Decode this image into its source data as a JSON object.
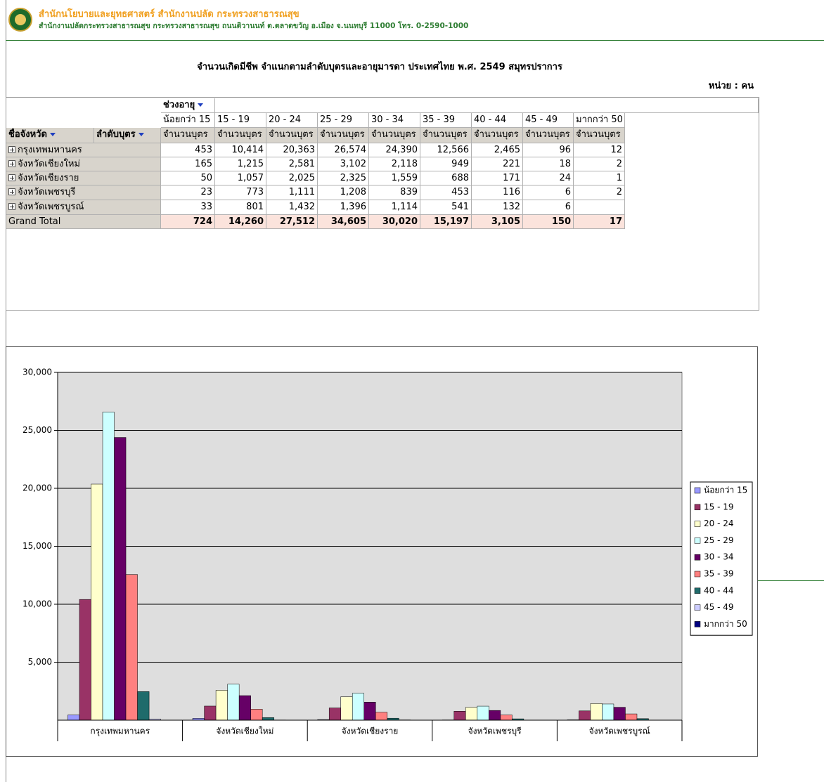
{
  "header": {
    "title": "สำนักนโยบายและยุทธศาสตร์ สำนักงานปลัด กระทรวงสาธารณสุข",
    "subtitle": "สำนักงานปลัดกระทรวงสาธารณสุข กระทรวงสาธารณสุข ถนนติวานนท์ ต.ตลาดขวัญ อ.เมือง จ.นนทบุรี 11000 โทร. 0-2590-1000"
  },
  "report_title": "จำนวนเกิดมีชีพ จำแนกตามลำดับบุตรและอายุมารดา ประเทศไทย พ.ศ. 2549  สมุทรปราการ",
  "unit": "หน่วย : คน",
  "table": {
    "column_field": "ช่วงอายุ",
    "row_fields": [
      "ชื่อจังหวัด",
      "ลำดับบุตร"
    ],
    "age_groups": [
      "น้อยกว่า 15",
      "15 - 19",
      "20 - 24",
      "25 - 29",
      "30 - 34",
      "35 - 39",
      "40 - 44",
      "45 - 49",
      "มากกว่า 50"
    ],
    "measure": "จำนวนบุตร",
    "rows": [
      {
        "name": "กรุงเทพมหานคร",
        "values": [
          "453",
          "10,414",
          "20,363",
          "26,574",
          "24,390",
          "12,566",
          "2,465",
          "96",
          "12"
        ]
      },
      {
        "name": "จังหวัดเชียงใหม่",
        "values": [
          "165",
          "1,215",
          "2,581",
          "3,102",
          "2,118",
          "949",
          "221",
          "18",
          "2"
        ]
      },
      {
        "name": "จังหวัดเชียงราย",
        "values": [
          "50",
          "1,057",
          "2,025",
          "2,325",
          "1,559",
          "688",
          "171",
          "24",
          "1"
        ]
      },
      {
        "name": "จังหวัดเพชรบุรี",
        "values": [
          "23",
          "773",
          "1,111",
          "1,208",
          "839",
          "453",
          "116",
          "6",
          "2"
        ]
      },
      {
        "name": "จังหวัดเพชรบูรณ์",
        "values": [
          "33",
          "801",
          "1,432",
          "1,396",
          "1,114",
          "541",
          "132",
          "6",
          null
        ]
      }
    ],
    "total_label": "Grand Total",
    "totals": [
      "724",
      "14,260",
      "27,512",
      "34,605",
      "30,020",
      "15,197",
      "3,105",
      "150",
      "17"
    ]
  },
  "chart_data": {
    "type": "bar",
    "categories": [
      "กรุงเทพมหานคร",
      "จังหวัดเชียงใหม่",
      "จังหวัดเชียงราย",
      "จังหวัดเพชรบุรี",
      "จังหวัดเพชรบูรณ์"
    ],
    "series": [
      {
        "name": "น้อยกว่า 15",
        "color": "#9999ff",
        "values": [
          453,
          165,
          50,
          23,
          33
        ]
      },
      {
        "name": "15 - 19",
        "color": "#993366",
        "values": [
          10414,
          1215,
          1057,
          773,
          801
        ]
      },
      {
        "name": "20 - 24",
        "color": "#ffffcc",
        "values": [
          20363,
          2581,
          2025,
          1111,
          1432
        ]
      },
      {
        "name": "25 - 29",
        "color": "#ccffff",
        "values": [
          26574,
          3102,
          2325,
          1208,
          1396
        ]
      },
      {
        "name": "30 - 34",
        "color": "#660066",
        "values": [
          24390,
          2118,
          1559,
          839,
          1114
        ]
      },
      {
        "name": "35 - 39",
        "color": "#ff8080",
        "values": [
          12566,
          949,
          688,
          453,
          541
        ]
      },
      {
        "name": "40 - 44",
        "color": "#1f6b6b",
        "values": [
          2465,
          221,
          171,
          116,
          132
        ]
      },
      {
        "name": "45 - 49",
        "color": "#ccccff",
        "values": [
          96,
          18,
          24,
          6,
          6
        ]
      },
      {
        "name": "มากกว่า 50",
        "color": "#000080",
        "values": [
          12,
          2,
          1,
          2,
          null
        ]
      }
    ],
    "ylim": [
      0,
      30000
    ],
    "yticks": [
      {
        "value": 5000,
        "label": "5,000"
      },
      {
        "value": 10000,
        "label": "10,000"
      },
      {
        "value": 15000,
        "label": "15,000"
      },
      {
        "value": 20000,
        "label": "20,000"
      },
      {
        "value": 25000,
        "label": "25,000"
      },
      {
        "value": 30000,
        "label": "30,000"
      }
    ],
    "grid": true,
    "legend": "right"
  }
}
